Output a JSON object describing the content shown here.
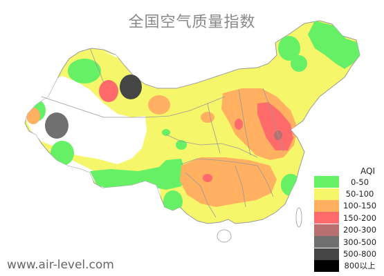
{
  "title": "全国空气质量指数",
  "watermark": "www.air-level.com",
  "legend": {
    "title": "AQI",
    "items": [
      {
        "label": "0-50",
        "color": "#66f066"
      },
      {
        "label": "50-100",
        "color": "#f6f66a"
      },
      {
        "label": "100-150",
        "color": "#ffb060"
      },
      {
        "label": "150-200",
        "color": "#ff6a6a"
      },
      {
        "label": "200-300",
        "color": "#b87070"
      },
      {
        "label": "300-500",
        "color": "#707070"
      },
      {
        "label": "500-800",
        "color": "#454545"
      },
      {
        "label": "800以上",
        "color": "#000000"
      }
    ]
  },
  "colors": {
    "level1": "#66f066",
    "level2": "#f6f66a",
    "level3": "#ffb060",
    "level4": "#ff6a6a",
    "level5": "#b87070",
    "level6": "#707070",
    "level7": "#454545",
    "level8": "#000000",
    "border": "#999999",
    "background": "#ffffff"
  }
}
